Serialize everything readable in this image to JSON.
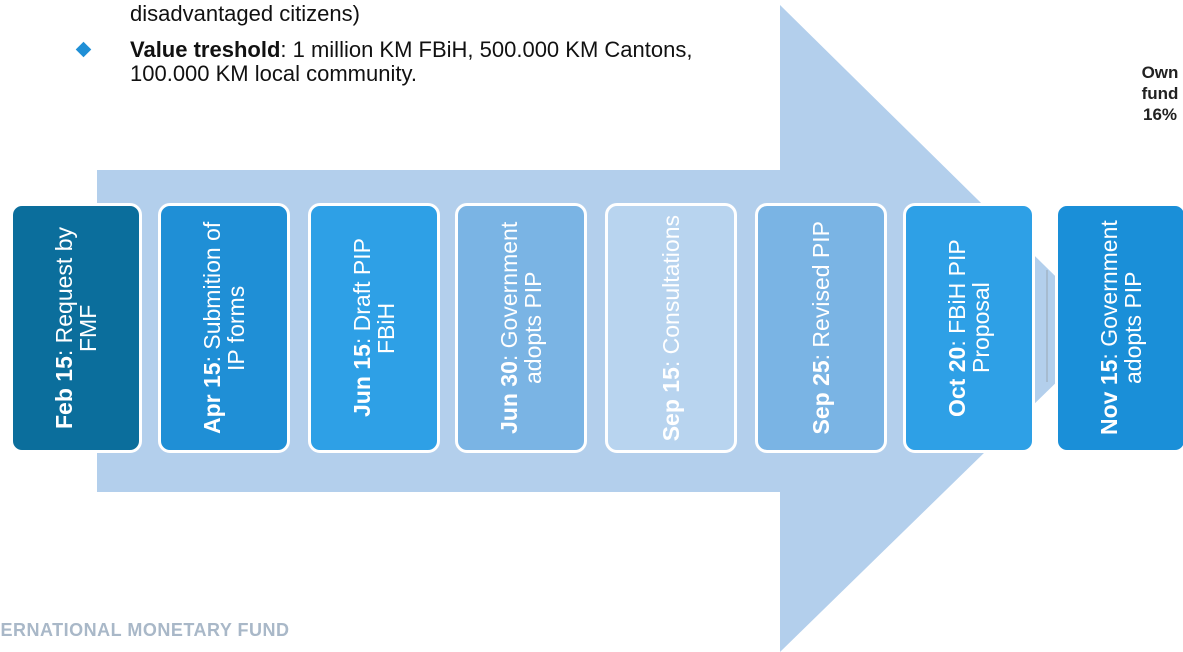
{
  "bullets": [
    {
      "text": "disadvantaged citizens)"
    },
    {
      "bold": "Value treshold",
      "text": ": 1 million KM FBiH, 500.000 KM Cantons, 100.000 KM local community."
    }
  ],
  "side_label": [
    "Own",
    "fund",
    "16%"
  ],
  "steps": [
    {
      "date": "Feb 15",
      "text": ": Request by FMF"
    },
    {
      "date": "Apr 15",
      "text": ": Submition of IP forms"
    },
    {
      "date": "Jun 15",
      "text": ":  Draft PIP FBiH"
    },
    {
      "date": "Jun 30",
      "text": ": Government adopts PIP"
    },
    {
      "date": "Sep 15",
      "text": ": Consultations"
    },
    {
      "date": "Sep 25",
      "text": ": Revised PIP"
    },
    {
      "date": "Oct 20",
      "text": ": FBiH PIP Proposal"
    },
    {
      "date": "Nov 15",
      "text": ": Government adopts PIP"
    }
  ],
  "footer": "INTERNATIONAL MONETARY FUND"
}
